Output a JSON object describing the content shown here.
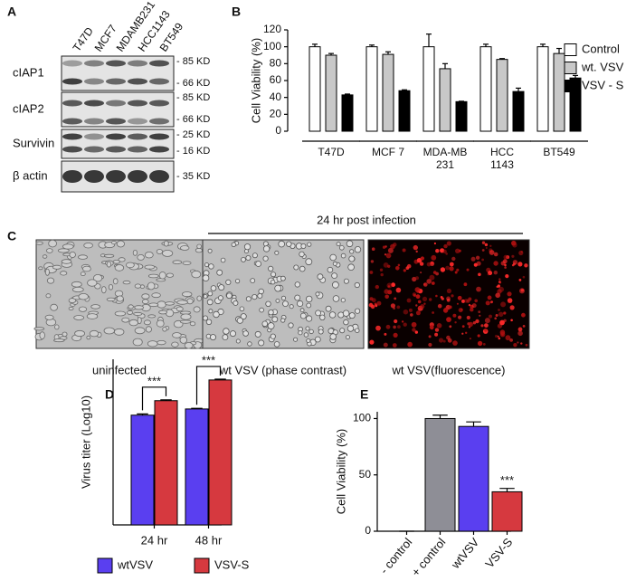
{
  "panel_labels": [
    "A",
    "B",
    "C",
    "D",
    "E"
  ],
  "blot": {
    "lanes": [
      "T47D",
      "MCF7",
      "MDAMB231",
      "HCC1143",
      "BT549"
    ],
    "rows": [
      {
        "name": "cIAP1",
        "markers": [
          "- 85 KD",
          "- 66 KD"
        ]
      },
      {
        "name": "cIAP2",
        "markers": [
          "- 85 KD",
          "- 66 KD"
        ]
      },
      {
        "name": "Survivin",
        "markers": [
          "- 25 KD",
          "- 16 KD"
        ]
      },
      {
        "name": "β actin",
        "markers": [
          "- 35 KD"
        ]
      }
    ]
  },
  "micrographs": {
    "header": "24 hr post infection",
    "captions": [
      "uninfected",
      "wt VSV (phase contrast)",
      "wt VSV(fluorescence)"
    ]
  },
  "chart_data": [
    {
      "type": "bar",
      "y_label": "Cell Viability (%)",
      "categories": [
        "T47D",
        "MCF 7",
        "MDA-MB\n231",
        "HCC\n1143",
        "BT549"
      ],
      "series": [
        {
          "name": "Control",
          "color": "#ffffff",
          "values": [
            100,
            100,
            100,
            100,
            100
          ],
          "errors": [
            3,
            2,
            15,
            3,
            3
          ]
        },
        {
          "name": "wt. VSV",
          "color": "#c8c8c8",
          "values": [
            90,
            91,
            74,
            85,
            92
          ],
          "errors": [
            2,
            3,
            6,
            1,
            6
          ]
        },
        {
          "name": "VSV - S",
          "color": "#000000",
          "values": [
            43,
            48,
            35,
            47,
            63
          ],
          "errors": [
            1,
            1,
            0.5,
            4,
            3
          ]
        }
      ],
      "ylim": [
        0,
        120
      ],
      "yticks": [
        0,
        20,
        40,
        60,
        80,
        100,
        120
      ],
      "legend": "right"
    },
    {
      "type": "bar",
      "y_label": "Virus titer (Log10)",
      "categories": [
        "24 hr",
        "48 hr"
      ],
      "series": [
        {
          "name": "wtVSV",
          "color": "#5a3ff0",
          "values": [
            5.3,
            5.6
          ],
          "errors": [
            0.06,
            0.03
          ]
        },
        {
          "name": "VSV-S",
          "color": "#d6393f",
          "values": [
            6.0,
            7.0
          ],
          "errors": [
            0.04,
            0.04
          ]
        }
      ],
      "ylim": [
        0,
        8
      ],
      "annotations": [
        "***",
        "***"
      ],
      "legend": "bottom"
    },
    {
      "type": "bar",
      "y_label": "Cell Viability (%)",
      "categories": [
        "- control",
        "+ control",
        "wtVSV",
        "VSV-S"
      ],
      "values": [
        0,
        100,
        93,
        35
      ],
      "errors": [
        0,
        3,
        4,
        3
      ],
      "colors": [
        "#ffffff",
        "#8e8e96",
        "#5a3ff0",
        "#d6393f"
      ],
      "ylim": [
        0,
        106
      ],
      "yticks": [
        0,
        50,
        100
      ],
      "annotations": [
        "***"
      ]
    }
  ]
}
